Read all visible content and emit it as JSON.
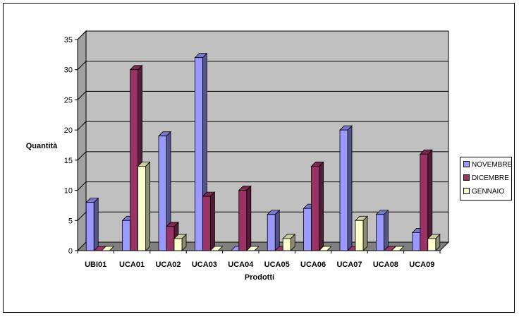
{
  "chart_data": {
    "type": "bar",
    "style": "3d-clustered-column",
    "ylabel": "Quantità",
    "xlabel": "Prodotti",
    "categories": [
      "UBI01",
      "UCA01",
      "UCA02",
      "UCA03",
      "UCA04",
      "UCA05",
      "UCA06",
      "UCA07",
      "UCA08",
      "UCA09"
    ],
    "series": [
      {
        "name": "NOVEMBRE",
        "color": "#9999FF",
        "values": [
          8,
          5,
          19,
          32,
          0,
          6,
          7,
          20,
          6,
          3
        ]
      },
      {
        "name": "DICEMBRE",
        "color": "#993366",
        "values": [
          0,
          30,
          4,
          9,
          10,
          0,
          14,
          0,
          0,
          16
        ]
      },
      {
        "name": "GENNAIO",
        "color": "#FFFFCC",
        "values": [
          0,
          14,
          2,
          0,
          0,
          2,
          0,
          5,
          0,
          2
        ]
      }
    ],
    "ylim": [
      0,
      35
    ],
    "yticks": [
      0,
      5,
      10,
      15,
      20,
      25,
      30,
      35
    ],
    "grid": true,
    "wall_color": "#C0C0C0",
    "legend_position": "right"
  }
}
